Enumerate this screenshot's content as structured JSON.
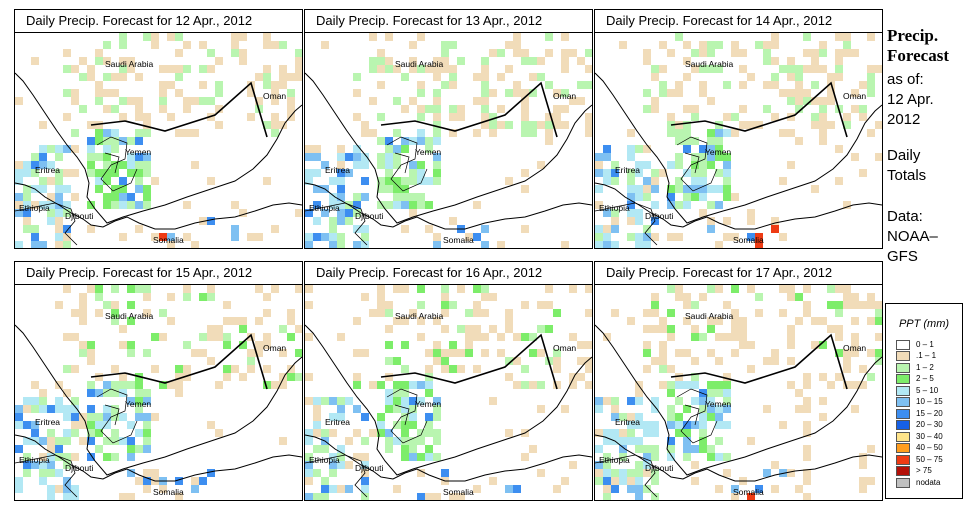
{
  "panels": [
    {
      "title": "Daily Precip. Forecast for  12 Apr., 2012",
      "seed": 11
    },
    {
      "title": "Daily Precip. Forecast for  13 Apr., 2012",
      "seed": 23
    },
    {
      "title": "Daily Precip. Forecast for  14 Apr., 2012",
      "seed": 37
    },
    {
      "title": "Daily Precip. Forecast for  15 Apr., 2012",
      "seed": 41
    },
    {
      "title": "Daily Precip. Forecast for  16 Apr., 2012",
      "seed": 53
    },
    {
      "title": "Daily Precip. Forecast for  17 Apr., 2012",
      "seed": 67
    }
  ],
  "map_labels": {
    "saudi": "Saudi Arabia",
    "oman": "Oman",
    "yemen": "Yemen",
    "eritrea": "Eritrea",
    "ethiopia": "Ethiopia",
    "djibouti": "Djibouti",
    "somalia": "Somalia"
  },
  "side": {
    "title_line1": "Precip.",
    "title_line2": "Forecast",
    "asof": "as of:",
    "date_line1": "12 Apr.",
    "date_line2": "2012",
    "totals_line1": "Daily",
    "totals_line2": "Totals",
    "data_line1": "Data:",
    "data_line2": "NOAA–",
    "data_line3": "GFS"
  },
  "legend": {
    "title": "PPT (mm)",
    "items": [
      {
        "label": "0 – 1",
        "color": "#ffffff"
      },
      {
        "label": ".1 – 1",
        "color": "#f1dcb9"
      },
      {
        "label": "1 – 2",
        "color": "#b9f5b0"
      },
      {
        "label": "2 – 5",
        "color": "#7ded6a"
      },
      {
        "label": "5 – 10",
        "color": "#b2e8f4"
      },
      {
        "label": "10 – 15",
        "color": "#7ec0f2"
      },
      {
        "label": "15 – 20",
        "color": "#3d8ef0"
      },
      {
        "label": "20 – 30",
        "color": "#1660e6"
      },
      {
        "label": "30 – 40",
        "color": "#ffe48a"
      },
      {
        "label": "40 – 50",
        "color": "#ff9d1e"
      },
      {
        "label": "50 – 75",
        "color": "#ee3b14"
      },
      {
        "label": "> 75",
        "color": "#b41008"
      },
      {
        "label": "nodata",
        "color": "#c0c0c0"
      }
    ]
  }
}
